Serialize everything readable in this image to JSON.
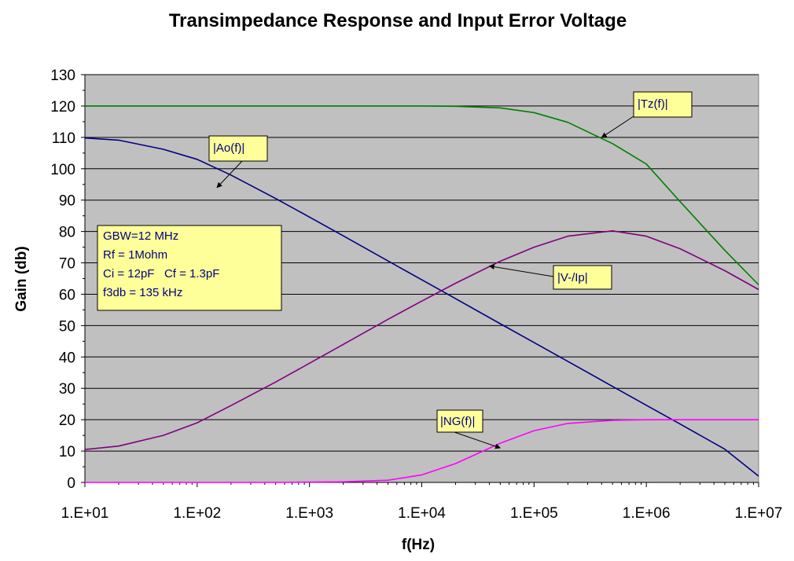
{
  "chart_data": {
    "type": "line",
    "title": "Transimpedance Response and Input Error Voltage",
    "xlabel": "f(Hz)",
    "ylabel": "Gain (db)",
    "x_scale": "log",
    "xlim": [
      10,
      10000000
    ],
    "ylim": [
      0,
      130
    ],
    "x_ticks": [
      10,
      100,
      1000,
      10000,
      100000,
      1000000,
      10000000
    ],
    "x_tick_labels": [
      "1.E+01",
      "1.E+02",
      "1.E+03",
      "1.E+04",
      "1.E+05",
      "1.E+06",
      "1.E+07"
    ],
    "y_ticks": [
      0,
      10,
      20,
      30,
      40,
      50,
      60,
      70,
      80,
      90,
      100,
      110,
      120,
      130
    ],
    "grid": "horizontal",
    "plot_background": "#C0C0C0",
    "x": [
      10,
      20,
      50,
      100,
      200,
      500,
      1000,
      2000,
      5000,
      10000,
      20000,
      50000,
      100000,
      200000,
      500000,
      1000000,
      2000000,
      5000000,
      10000000
    ],
    "series": [
      {
        "name": "|Tz(f)|",
        "color": "#008000",
        "values": [
          120,
          120,
          120,
          120,
          120,
          120,
          120,
          120,
          120,
          120,
          119.9,
          119.4,
          117.9,
          114.8,
          108,
          101.5,
          89.5,
          74,
          63
        ]
      },
      {
        "name": "|Ao(f)|",
        "color": "#000080",
        "values": [
          109.8,
          109.1,
          106.2,
          103,
          98,
          90.5,
          84.6,
          78.6,
          70.6,
          64.6,
          58.6,
          50.6,
          44.6,
          38.6,
          30.6,
          24.6,
          18.6,
          10.6,
          2
        ]
      },
      {
        "name": "|V-/Ip|",
        "color": "#800080",
        "values": [
          10.5,
          11.6,
          15,
          19,
          24.5,
          32,
          38,
          44,
          52,
          57.8,
          63.5,
          70.5,
          75,
          78.5,
          80.2,
          78.5,
          74.5,
          67.5,
          61.5
        ]
      },
      {
        "name": "|NG(f)|",
        "color": "#FF00FF",
        "values": [
          0,
          0,
          0,
          0,
          0,
          0,
          0.1,
          0.2,
          0.7,
          2.4,
          6,
          12.5,
          16.5,
          18.8,
          19.8,
          20,
          20,
          20,
          20
        ]
      }
    ],
    "annotations": [
      {
        "text": "|Tz(f)|",
        "series": "|Tz(f)|",
        "x": 400000,
        "y": 110
      },
      {
        "text": "|Ao(f)|",
        "series": "|Ao(f)|",
        "x": 150,
        "y": 94
      },
      {
        "text": "|V-/Ip|",
        "series": "|V-/Ip|",
        "x": 40000,
        "y": 69
      },
      {
        "text": "|NG(f)|",
        "series": "|NG(f)|",
        "x": 50000,
        "y": 11
      }
    ],
    "info_box": [
      "GBW=12 MHz",
      "Rf = 1Mohm",
      "Ci = 12pF   Cf = 1.3pF",
      "f3db = 135 kHz"
    ]
  }
}
